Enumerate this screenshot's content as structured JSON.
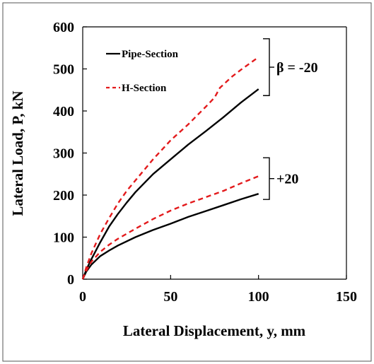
{
  "chart_data": {
    "type": "line",
    "xlabel": "Lateral Displacement, y, mm",
    "ylabel": "Lateral Load, P, kN",
    "xlim": [
      0,
      150
    ],
    "ylim": [
      0,
      600
    ],
    "xticks": [
      "0",
      "50",
      "100",
      "150"
    ],
    "yticks": [
      "0",
      "100",
      "200",
      "300",
      "400",
      "500",
      "600"
    ],
    "grid": false,
    "legend_position": "top-left",
    "legend": [
      {
        "label": "Pipe-Section",
        "style": "solid",
        "color": "#000000"
      },
      {
        "label": "H-Section",
        "style": "dashed",
        "color": "#e31a1c"
      }
    ],
    "series": [
      {
        "name": "Pipe-Section",
        "group": "β = -20",
        "style": "solid",
        "color": "#000000",
        "x": [
          0,
          2,
          5,
          10,
          15,
          20,
          25,
          30,
          40,
          50,
          60,
          70,
          80,
          90,
          100
        ],
        "y": [
          0,
          22,
          48,
          88,
          125,
          155,
          182,
          207,
          250,
          285,
          320,
          352,
          385,
          420,
          452
        ]
      },
      {
        "name": "H-Section",
        "group": "β = -20",
        "style": "dashed",
        "color": "#e31a1c",
        "x": [
          0,
          2,
          5,
          10,
          15,
          20,
          25,
          30,
          40,
          50,
          60,
          70,
          75,
          78,
          85,
          90,
          100
        ],
        "y": [
          0,
          28,
          62,
          108,
          145,
          180,
          210,
          235,
          285,
          330,
          368,
          410,
          432,
          455,
          482,
          498,
          528
        ]
      },
      {
        "name": "Pipe-Section",
        "group": "+20",
        "style": "solid",
        "color": "#000000",
        "x": [
          0,
          2,
          5,
          10,
          15,
          20,
          30,
          40,
          50,
          60,
          70,
          80,
          90,
          100
        ],
        "y": [
          0,
          18,
          35,
          55,
          68,
          80,
          100,
          117,
          132,
          148,
          162,
          176,
          190,
          203
        ]
      },
      {
        "name": "H-Section",
        "group": "+20",
        "style": "dashed",
        "color": "#e31a1c",
        "x": [
          0,
          2,
          5,
          10,
          15,
          20,
          25,
          30,
          40,
          50,
          60,
          70,
          80,
          90,
          100
        ],
        "y": [
          0,
          20,
          42,
          65,
          82,
          96,
          108,
          120,
          143,
          163,
          180,
          195,
          210,
          228,
          245
        ]
      }
    ],
    "annotations": [
      {
        "label": "β = -20",
        "y_range": [
          450,
          528
        ]
      },
      {
        "label": "+20",
        "y_range": [
          203,
          245
        ]
      }
    ]
  }
}
